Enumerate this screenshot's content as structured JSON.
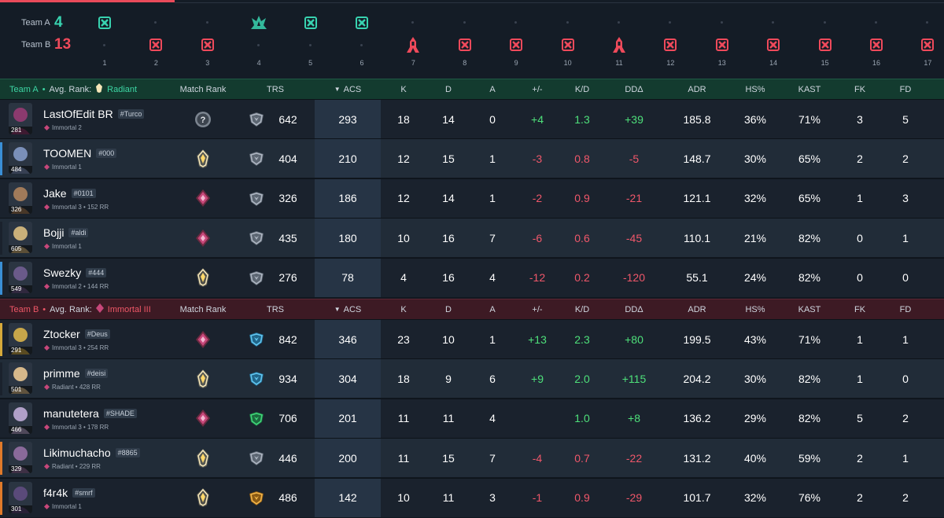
{
  "timeline": {
    "team_a": {
      "label": "Team A",
      "score": "4",
      "color": "#38d3b0"
    },
    "team_b": {
      "label": "Team B",
      "score": "13",
      "color": "#ef4a5b"
    },
    "rounds": [
      {
        "n": "1",
        "winner": "a",
        "icon": "elimination-icon"
      },
      {
        "n": "2",
        "winner": "b",
        "icon": "elimination-icon"
      },
      {
        "n": "3",
        "winner": "b",
        "icon": "elimination-icon"
      },
      {
        "n": "4",
        "winner": "a",
        "icon": "spike-detonate-icon"
      },
      {
        "n": "5",
        "winner": "a",
        "icon": "elimination-icon"
      },
      {
        "n": "6",
        "winner": "a",
        "icon": "elimination-icon"
      },
      {
        "n": "7",
        "winner": "b",
        "icon": "spike-defuse-icon"
      },
      {
        "n": "8",
        "winner": "b",
        "icon": "elimination-icon"
      },
      {
        "n": "9",
        "winner": "b",
        "icon": "elimination-icon"
      },
      {
        "n": "10",
        "winner": "b",
        "icon": "elimination-icon"
      },
      {
        "n": "11",
        "winner": "b",
        "icon": "spike-defuse-icon"
      },
      {
        "n": "12",
        "winner": "b",
        "icon": "elimination-icon"
      },
      {
        "n": "13",
        "winner": "b",
        "icon": "elimination-icon"
      },
      {
        "n": "14",
        "winner": "b",
        "icon": "elimination-icon"
      },
      {
        "n": "15",
        "winner": "b",
        "icon": "elimination-icon"
      },
      {
        "n": "16",
        "winner": "b",
        "icon": "elimination-icon"
      },
      {
        "n": "17",
        "winner": "b",
        "icon": "elimination-icon"
      }
    ]
  },
  "columns": {
    "match_rank": "Match Rank",
    "trs": "TRS",
    "acs": "ACS",
    "k": "K",
    "d": "D",
    "a": "A",
    "pm": "+/-",
    "kd": "K/D",
    "dd": "DDΔ",
    "adr": "ADR",
    "hs": "HS%",
    "kast": "KAST",
    "fk": "FK",
    "fd": "FD"
  },
  "teams": [
    {
      "name": "Team A",
      "avg_label": "Avg. Rank:",
      "avg_rank": "Radiant",
      "color": "#3dd6a4",
      "players": [
        {
          "name": "LastOfEdit BR",
          "tag": "#Turco",
          "rank": "Immortal 2",
          "level": "281",
          "bar": "#1a222d",
          "avatar_color": "#8b3a6e",
          "mr": "unknown",
          "trs_icon": "silver",
          "trs": "642",
          "acs": "293",
          "k": "18",
          "d": "14",
          "a": "0",
          "pm": "+4",
          "kd": "1.3",
          "dd": "+39",
          "adr": "185.8",
          "hs": "36%",
          "kast": "71%",
          "fk": "3",
          "fd": "5",
          "pm_s": "pos",
          "kd_s": "pos",
          "dd_s": "pos"
        },
        {
          "name": "TOOMEN",
          "tag": "#000",
          "rank": "Immortal 1",
          "level": "484",
          "bar": "#3a8fd6",
          "avatar_color": "#7a8fb8",
          "mr": "radiant",
          "trs_icon": "silver",
          "trs": "404",
          "acs": "210",
          "k": "12",
          "d": "15",
          "a": "1",
          "pm": "-3",
          "kd": "0.8",
          "dd": "-5",
          "adr": "148.7",
          "hs": "30%",
          "kast": "65%",
          "fk": "2",
          "fd": "2",
          "pm_s": "neg",
          "kd_s": "neg",
          "dd_s": "neg"
        },
        {
          "name": "Jake",
          "tag": "#0101",
          "rank": "Immortal 3 • 152 RR",
          "level": "326",
          "bar": "#1a222d",
          "avatar_color": "#a07a5a",
          "mr": "immortal",
          "trs_icon": "silver",
          "trs": "326",
          "acs": "186",
          "k": "12",
          "d": "14",
          "a": "1",
          "pm": "-2",
          "kd": "0.9",
          "dd": "-21",
          "adr": "121.1",
          "hs": "32%",
          "kast": "65%",
          "fk": "1",
          "fd": "3",
          "pm_s": "neg",
          "kd_s": "neg",
          "dd_s": "neg"
        },
        {
          "name": "Bojji",
          "tag": "#aldi",
          "rank": "Immortal 1",
          "level": "605",
          "bar": "#1a222d",
          "avatar_color": "#c9b07a",
          "mr": "immortal",
          "trs_icon": "silver",
          "trs": "435",
          "acs": "180",
          "k": "10",
          "d": "16",
          "a": "7",
          "pm": "-6",
          "kd": "0.6",
          "dd": "-45",
          "adr": "110.1",
          "hs": "21%",
          "kast": "82%",
          "fk": "0",
          "fd": "1",
          "pm_s": "neg",
          "kd_s": "neg",
          "dd_s": "neg"
        },
        {
          "name": "Swezky",
          "tag": "#444",
          "rank": "Immortal 2 • 144 RR",
          "level": "549",
          "bar": "#3a8fd6",
          "avatar_color": "#6a5a8a",
          "mr": "radiant",
          "trs_icon": "silver",
          "trs": "276",
          "acs": "78",
          "k": "4",
          "d": "16",
          "a": "4",
          "pm": "-12",
          "kd": "0.2",
          "dd": "-120",
          "adr": "55.1",
          "hs": "24%",
          "kast": "82%",
          "fk": "0",
          "fd": "0",
          "pm_s": "neg",
          "kd_s": "neg",
          "dd_s": "neg"
        }
      ]
    },
    {
      "name": "Team B",
      "avg_label": "Avg. Rank:",
      "avg_rank": "Immortal III",
      "color": "#ef5767",
      "players": [
        {
          "name": "Ztocker",
          "tag": "#Deus",
          "rank": "Immortal 3 • 254 RR",
          "level": "291",
          "bar": "#d6a93a",
          "avatar_color": "#c7a64a",
          "mr": "immortal",
          "trs_icon": "diamond",
          "trs": "842",
          "acs": "346",
          "k": "23",
          "d": "10",
          "a": "1",
          "pm": "+13",
          "kd": "2.3",
          "dd": "+80",
          "adr": "199.5",
          "hs": "43%",
          "kast": "71%",
          "fk": "1",
          "fd": "1",
          "pm_s": "pos",
          "kd_s": "pos",
          "dd_s": "pos"
        },
        {
          "name": "primme",
          "tag": "#deisi",
          "rank": "Radiant • 428 RR",
          "level": "501",
          "bar": "#1a222d",
          "avatar_color": "#d6b88a",
          "mr": "radiant",
          "trs_icon": "diamond",
          "trs": "934",
          "acs": "304",
          "k": "18",
          "d": "9",
          "a": "6",
          "pm": "+9",
          "kd": "2.0",
          "dd": "+115",
          "adr": "204.2",
          "hs": "30%",
          "kast": "82%",
          "fk": "1",
          "fd": "0",
          "pm_s": "pos",
          "kd_s": "pos",
          "dd_s": "pos"
        },
        {
          "name": "manutetera",
          "tag": "#SHADE",
          "rank": "Immortal 3 • 178 RR",
          "level": "466",
          "bar": "#1a222d",
          "avatar_color": "#b0a0c8",
          "mr": "immortal",
          "trs_icon": "emerald",
          "trs": "706",
          "acs": "201",
          "k": "11",
          "d": "11",
          "a": "4",
          "pm": "",
          "kd": "1.0",
          "dd": "+8",
          "adr": "136.2",
          "hs": "29%",
          "kast": "82%",
          "fk": "5",
          "fd": "2",
          "pm_s": "pos",
          "kd_s": "pos",
          "dd_s": "pos"
        },
        {
          "name": "Likimuchacho",
          "tag": "#8865",
          "rank": "Radiant • 229 RR",
          "level": "329",
          "bar": "#e07a2a",
          "avatar_color": "#8a6a9a",
          "mr": "radiant",
          "trs_icon": "silver",
          "trs": "446",
          "acs": "200",
          "k": "11",
          "d": "15",
          "a": "7",
          "pm": "-4",
          "kd": "0.7",
          "dd": "-22",
          "adr": "131.2",
          "hs": "40%",
          "kast": "59%",
          "fk": "2",
          "fd": "1",
          "pm_s": "neg",
          "kd_s": "neg",
          "dd_s": "neg"
        },
        {
          "name": "f4r4k",
          "tag": "#smrf",
          "rank": "Immortal 1",
          "level": "301",
          "bar": "#e07a2a",
          "avatar_color": "#5a4a7a",
          "mr": "radiant",
          "trs_icon": "gold",
          "trs": "486",
          "acs": "142",
          "k": "10",
          "d": "11",
          "a": "3",
          "pm": "-1",
          "kd": "0.9",
          "dd": "-29",
          "adr": "101.7",
          "hs": "32%",
          "kast": "76%",
          "fk": "2",
          "fd": "2",
          "pm_s": "neg",
          "kd_s": "neg",
          "dd_s": "neg"
        }
      ]
    }
  ]
}
